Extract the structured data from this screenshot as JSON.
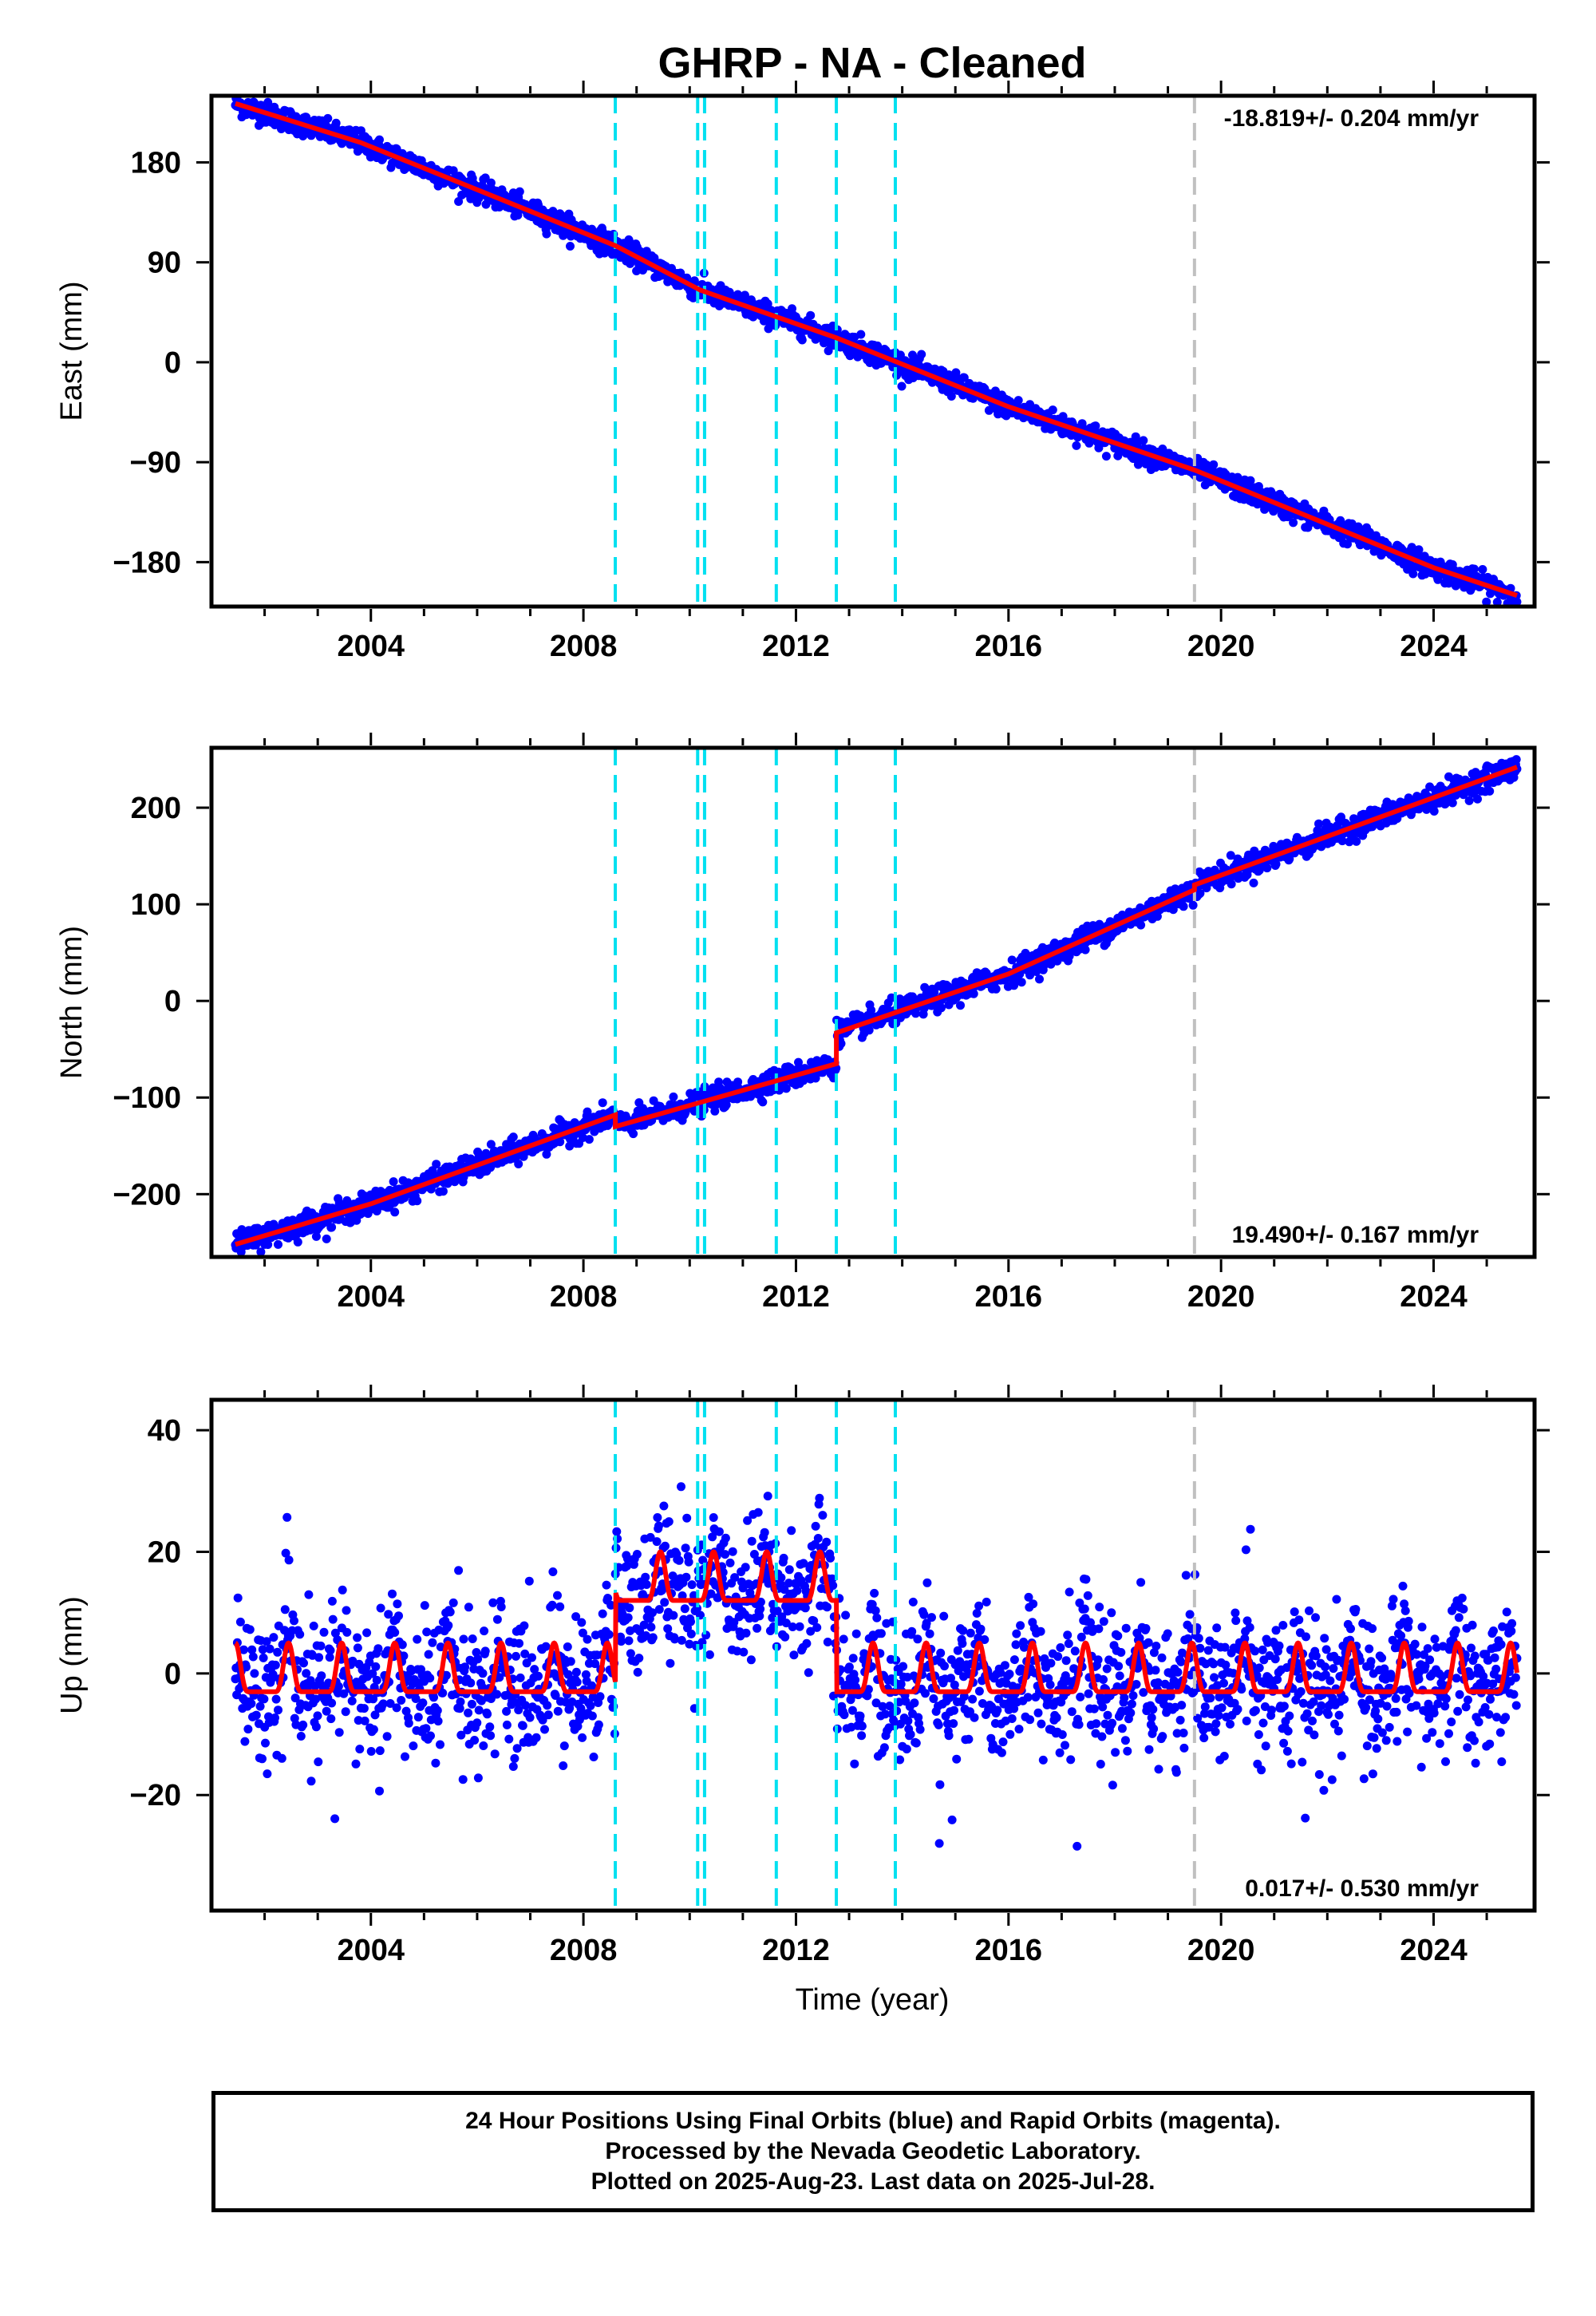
{
  "chart_data": {
    "type": "scatter",
    "title": "GHRP  - NA - Cleaned",
    "xlabel": "Time (year)",
    "xlim": [
      2001.0,
      2025.9
    ],
    "x_ticks": [
      "2004",
      "2008",
      "2012",
      "2016",
      "2020",
      "2024"
    ],
    "x_tick_values": [
      2004,
      2008,
      2012,
      2016,
      2020,
      2024
    ],
    "data_start": 2001.45,
    "data_end": 2025.57,
    "grid": false,
    "event_lines": {
      "cyan": [
        2008.6,
        2010.15,
        2010.28,
        2011.63,
        2012.76,
        2013.87
      ],
      "gray": [
        2019.5
      ]
    },
    "colors": {
      "final_orbits": "#0000ff",
      "model": "#ff0000",
      "events": "#00e0f0",
      "equipment": "#c0c0c0"
    },
    "panels": [
      {
        "name": "East",
        "ylabel": "East (mm)",
        "ylim": [
          -220,
          240
        ],
        "y_ticks": [
          "180",
          "90",
          "0",
          "−90",
          "−180"
        ],
        "y_tick_values": [
          180,
          90,
          0,
          -90,
          -180
        ],
        "rate_label": "-18.819+/- 0.204 mm/yr",
        "rate_position": "top-right",
        "rate_mm_yr": -18.819,
        "rate_sigma": 0.204,
        "model_knots": [
          [
            2001.45,
            233
          ],
          [
            2003.8,
            198
          ],
          [
            2008.6,
            105
          ],
          [
            2010.2,
            65
          ],
          [
            2012.76,
            22
          ],
          [
            2016,
            -40
          ],
          [
            2019.5,
            -97
          ],
          [
            2024,
            -185
          ],
          [
            2025.57,
            -210
          ]
        ],
        "scatter_sigma": 5,
        "offsets": []
      },
      {
        "name": "North",
        "ylabel": "North (mm)",
        "ylim": [
          -265,
          262
        ],
        "y_ticks": [
          "200",
          "100",
          "0",
          "−100",
          "−200"
        ],
        "y_tick_values": [
          200,
          100,
          0,
          -100,
          -200
        ],
        "rate_label": "19.490+/- 0.167 mm/yr",
        "rate_position": "bottom-right",
        "rate_mm_yr": 19.49,
        "rate_sigma": 0.167,
        "model_knots": [
          [
            2001.45,
            -252
          ],
          [
            2004,
            -210
          ],
          [
            2008.6,
            -118
          ],
          [
            2008.6,
            -130
          ],
          [
            2012.76,
            -65
          ],
          [
            2012.76,
            -33
          ],
          [
            2016,
            28
          ],
          [
            2019.5,
            115
          ],
          [
            2019.5,
            120
          ],
          [
            2025.57,
            242
          ]
        ],
        "scatter_sigma": 6,
        "offsets": [
          {
            "epoch": 2008.6,
            "size_mm": -12
          },
          {
            "epoch": 2012.76,
            "size_mm": 32
          }
        ]
      },
      {
        "name": "Up",
        "ylabel": "Up (mm)",
        "ylim": [
          -39,
          45
        ],
        "y_ticks": [
          "40",
          "20",
          "0",
          "−20"
        ],
        "y_tick_values": [
          40,
          20,
          0,
          -20
        ],
        "rate_label": "0.017+/- 0.530 mm/yr",
        "rate_position": "bottom-right",
        "rate_mm_yr": 0.017,
        "rate_sigma": 0.53,
        "seasonal_amplitude_mm": 4,
        "levels": [
          {
            "from": 2001.45,
            "to": 2008.6,
            "mean": -1
          },
          {
            "from": 2008.6,
            "to": 2012.76,
            "mean": 14
          },
          {
            "from": 2012.76,
            "to": 2025.57,
            "mean": -1
          }
        ],
        "scatter_sigma": 5.5,
        "offsets": []
      }
    ]
  },
  "footer": {
    "line1": "24 Hour Positions Using Final Orbits (blue) and Rapid Orbits (magenta).",
    "line2": "Processed by the Nevada Geodetic Laboratory.",
    "line3": "Plotted on 2025-Aug-23. Last data on 2025-Jul-28."
  }
}
